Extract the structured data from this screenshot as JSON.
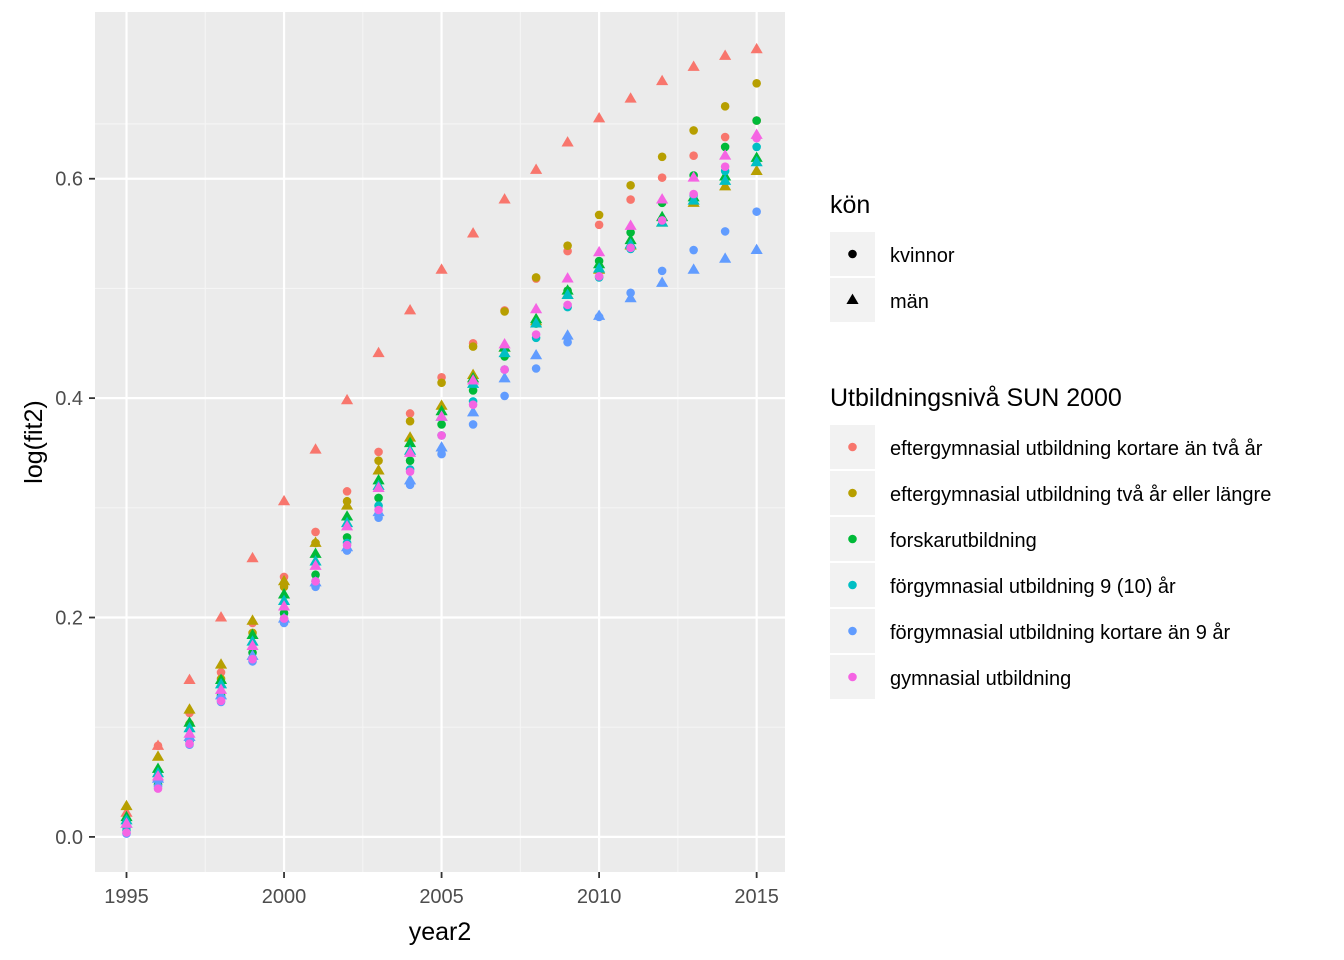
{
  "chart_data": {
    "type": "scatter",
    "title": "",
    "xlabel": "year2",
    "ylabel": "log(fit2)",
    "xlim": [
      1994,
      2015.9
    ],
    "ylim": [
      -0.032,
      0.752
    ],
    "x_ticks": [
      1995,
      2000,
      2005,
      2010,
      2015
    ],
    "x_tick_labels": [
      "1995",
      "2000",
      "2005",
      "2010",
      "2015"
    ],
    "y_ticks": [
      0.0,
      0.2,
      0.4,
      0.6
    ],
    "y_tick_labels": [
      "0.0",
      "0.2",
      "0.4",
      "0.6"
    ],
    "grid": true,
    "panel_background": "#EBEBEB",
    "x": [
      1995,
      1996,
      1997,
      1998,
      1999,
      2000,
      2001,
      2002,
      2003,
      2004,
      2005,
      2006,
      2007,
      2008,
      2009,
      2010,
      2011,
      2012,
      2013,
      2014,
      2015
    ],
    "shape_legend": {
      "title": "kön",
      "items": [
        {
          "label": "kvinnor",
          "shape": "circle"
        },
        {
          "label": "män",
          "shape": "triangle"
        }
      ]
    },
    "color_legend": {
      "title": "Utbildningsnivå SUN 2000",
      "items": [
        {
          "label": "eftergymnasial utbildning kortare än två år",
          "color": "#F8766D"
        },
        {
          "label": "eftergymnasial utbildning två år eller längre",
          "color": "#B79F00"
        },
        {
          "label": "forskarutbildning",
          "color": "#00BA38"
        },
        {
          "label": "förgymnasial utbildning 9 (10) år",
          "color": "#00BFC4"
        },
        {
          "label": "förgymnasial utbildning kortare än 9 år",
          "color": "#619CFF"
        },
        {
          "label": "gymnasial utbildning",
          "color": "#F564E3"
        }
      ]
    },
    "series": [
      {
        "color_index": 0,
        "shape": "circle",
        "values": [
          0.016,
          0.083,
          0.113,
          0.15,
          0.195,
          0.237,
          0.278,
          0.315,
          0.351,
          0.386,
          0.419,
          0.45,
          0.48,
          0.509,
          0.534,
          0.558,
          0.581,
          0.601,
          0.621,
          0.638,
          0.653
        ]
      },
      {
        "color_index": 0,
        "shape": "triangle",
        "values": [
          0.022,
          0.083,
          0.143,
          0.2,
          0.254,
          0.306,
          0.353,
          0.398,
          0.441,
          0.48,
          0.517,
          0.55,
          0.581,
          0.608,
          0.633,
          0.655,
          0.673,
          0.689,
          0.702,
          0.712,
          0.718
        ]
      },
      {
        "color_index": 1,
        "shape": "circle",
        "values": [
          0.015,
          0.06,
          0.103,
          0.144,
          0.186,
          0.228,
          0.268,
          0.306,
          0.343,
          0.379,
          0.414,
          0.447,
          0.479,
          0.51,
          0.539,
          0.567,
          0.594,
          0.62,
          0.644,
          0.666,
          0.687
        ]
      },
      {
        "color_index": 1,
        "shape": "triangle",
        "values": [
          0.028,
          0.073,
          0.116,
          0.157,
          0.197,
          0.233,
          0.268,
          0.302,
          0.334,
          0.364,
          0.393,
          0.421,
          0.446,
          0.47,
          0.494,
          0.517,
          0.539,
          0.56,
          0.578,
          0.593,
          0.607
        ]
      },
      {
        "color_index": 2,
        "shape": "circle",
        "values": [
          0.009,
          0.048,
          0.088,
          0.129,
          0.168,
          0.204,
          0.239,
          0.273,
          0.309,
          0.343,
          0.376,
          0.407,
          0.438,
          0.468,
          0.498,
          0.525,
          0.551,
          0.578,
          0.603,
          0.629,
          0.653
        ]
      },
      {
        "color_index": 2,
        "shape": "triangle",
        "values": [
          0.018,
          0.062,
          0.104,
          0.143,
          0.184,
          0.221,
          0.258,
          0.292,
          0.325,
          0.359,
          0.388,
          0.418,
          0.446,
          0.472,
          0.498,
          0.522,
          0.544,
          0.565,
          0.583,
          0.602,
          0.619
        ]
      },
      {
        "color_index": 3,
        "shape": "circle",
        "values": [
          0.006,
          0.051,
          0.087,
          0.127,
          0.163,
          0.199,
          0.233,
          0.268,
          0.302,
          0.335,
          0.366,
          0.397,
          0.426,
          0.455,
          0.483,
          0.51,
          0.536,
          0.562,
          0.585,
          0.607,
          0.629
        ]
      },
      {
        "color_index": 3,
        "shape": "triangle",
        "values": [
          0.015,
          0.058,
          0.099,
          0.139,
          0.178,
          0.215,
          0.251,
          0.286,
          0.32,
          0.352,
          0.383,
          0.413,
          0.441,
          0.468,
          0.494,
          0.518,
          0.54,
          0.56,
          0.58,
          0.598,
          0.615
        ]
      },
      {
        "color_index": 4,
        "shape": "circle",
        "values": [
          0.003,
          0.046,
          0.084,
          0.123,
          0.16,
          0.195,
          0.228,
          0.261,
          0.291,
          0.321,
          0.349,
          0.376,
          0.402,
          0.427,
          0.451,
          0.474,
          0.496,
          0.516,
          0.535,
          0.552,
          0.57
        ]
      },
      {
        "color_index": 4,
        "shape": "triangle",
        "values": [
          0.012,
          0.053,
          0.091,
          0.129,
          0.165,
          0.199,
          0.232,
          0.264,
          0.296,
          0.325,
          0.355,
          0.387,
          0.418,
          0.439,
          0.457,
          0.475,
          0.491,
          0.505,
          0.517,
          0.527,
          0.535
        ]
      },
      {
        "color_index": 5,
        "shape": "circle",
        "values": [
          0.004,
          0.044,
          0.085,
          0.124,
          0.162,
          0.199,
          0.233,
          0.266,
          0.298,
          0.333,
          0.366,
          0.394,
          0.426,
          0.458,
          0.485,
          0.511,
          0.537,
          0.562,
          0.586,
          0.611,
          0.637
        ]
      },
      {
        "color_index": 5,
        "shape": "triangle",
        "values": [
          0.012,
          0.055,
          0.094,
          0.134,
          0.174,
          0.21,
          0.247,
          0.283,
          0.318,
          0.35,
          0.383,
          0.416,
          0.449,
          0.481,
          0.509,
          0.533,
          0.557,
          0.581,
          0.601,
          0.621,
          0.64
        ]
      }
    ]
  }
}
